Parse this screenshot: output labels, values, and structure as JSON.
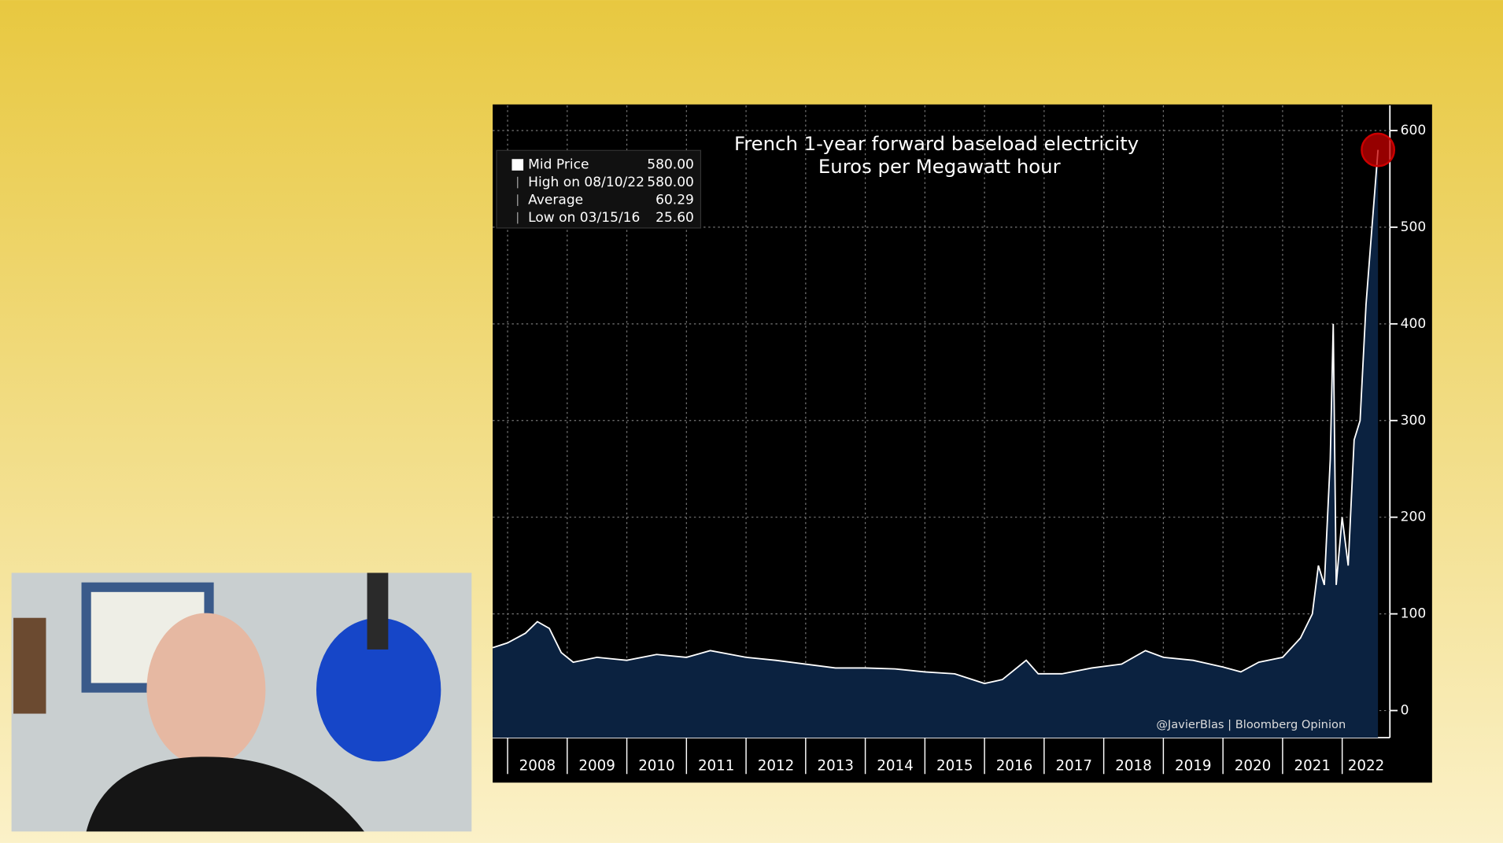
{
  "chart_data": {
    "type": "area",
    "title": "French 1-year forward baseload electricity",
    "subtitle": "Euros per Megawatt hour",
    "credit": "@JavierBlas | Bloomberg Opinion",
    "legend_stats": [
      {
        "label": "Mid Price",
        "value": "580.00"
      },
      {
        "label": "High on 08/10/22",
        "value": "580.00"
      },
      {
        "label": "Average",
        "value": "60.29"
      },
      {
        "label": "Low on 03/15/16",
        "value": "25.60"
      }
    ],
    "x": [
      2007.75,
      2008.0,
      2008.3,
      2008.5,
      2008.7,
      2008.9,
      2009.1,
      2009.5,
      2010.0,
      2010.5,
      2011.0,
      2011.4,
      2012.0,
      2012.5,
      2013.0,
      2013.5,
      2014.0,
      2014.5,
      2015.0,
      2015.5,
      2016.0,
      2016.3,
      2016.7,
      2016.9,
      2017.3,
      2017.8,
      2018.3,
      2018.7,
      2019.0,
      2019.5,
      2020.0,
      2020.3,
      2020.6,
      2021.0,
      2021.3,
      2021.5,
      2021.6,
      2021.7,
      2021.8,
      2021.85,
      2021.9,
      2022.0,
      2022.1,
      2022.2,
      2022.3,
      2022.4,
      2022.5,
      2022.6
    ],
    "series": [
      {
        "name": "Mid Price",
        "color": "#ffffff",
        "fill": "#0b2240",
        "values": [
          65,
          70,
          80,
          92,
          85,
          60,
          50,
          55,
          52,
          58,
          55,
          62,
          55,
          52,
          48,
          44,
          44,
          43,
          40,
          38,
          28,
          32,
          52,
          38,
          38,
          44,
          48,
          62,
          55,
          52,
          45,
          40,
          50,
          55,
          75,
          100,
          150,
          130,
          260,
          400,
          130,
          200,
          150,
          280,
          300,
          420,
          500,
          580
        ]
      }
    ],
    "xlim": [
      2007.75,
      2022.8
    ],
    "xticks": [
      2008,
      2009,
      2010,
      2011,
      2012,
      2013,
      2014,
      2015,
      2016,
      2017,
      2018,
      2019,
      2020,
      2021,
      2022
    ],
    "ylim": [
      -28,
      626
    ],
    "yticks": [
      0,
      100,
      200,
      300,
      400,
      500,
      600
    ],
    "grid": true
  }
}
